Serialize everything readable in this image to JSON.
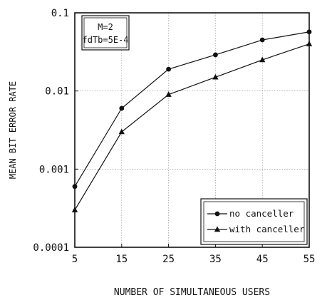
{
  "chart_data": {
    "type": "line",
    "title": "",
    "xlabel": "NUMBER OF SIMULTANEOUS USERS",
    "ylabel": "MEAN BIT ERROR RATE",
    "x": [
      5,
      15,
      25,
      35,
      45,
      55
    ],
    "xlim": [
      5,
      55
    ],
    "ylim": [
      0.0001,
      0.1
    ],
    "yscale": "log",
    "x_ticks": [
      "5",
      "15",
      "25",
      "35",
      "45",
      "55"
    ],
    "y_ticks": [
      "0.0001",
      "0.001",
      "0.01",
      "0.1"
    ],
    "y_tick_values": [
      0.0001,
      0.001,
      0.01,
      0.1
    ],
    "grid": true,
    "legend_position": "bottom-right",
    "annotation": [
      "M=2",
      "fdTb=5E-4"
    ],
    "series": [
      {
        "name": "no canceller",
        "marker": "circle",
        "values": [
          0.0006,
          0.006,
          0.019,
          0.029,
          0.045,
          0.057
        ]
      },
      {
        "name": "with canceller",
        "marker": "triangle",
        "values": [
          0.0003,
          0.003,
          0.009,
          0.015,
          0.025,
          0.04
        ]
      }
    ]
  }
}
